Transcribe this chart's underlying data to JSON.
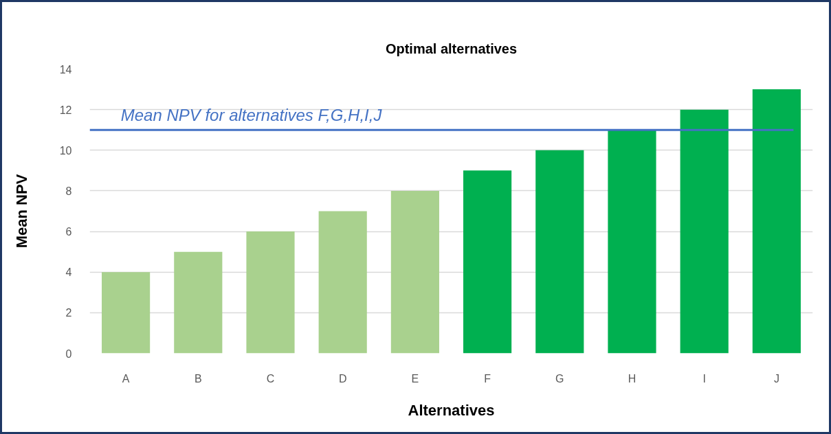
{
  "chart_data": {
    "type": "bar",
    "title": "Optimal alternatives",
    "xlabel": "Alternatives",
    "ylabel": "Mean NPV",
    "categories": [
      "A",
      "B",
      "C",
      "D",
      "E",
      "F",
      "G",
      "H",
      "I",
      "J"
    ],
    "values": [
      4,
      5,
      6,
      7,
      8,
      9,
      10,
      11,
      12,
      13
    ],
    "colors": [
      "#a9d18e",
      "#a9d18e",
      "#a9d18e",
      "#a9d18e",
      "#a9d18e",
      "#00b050",
      "#00b050",
      "#00b050",
      "#00b050",
      "#00b050"
    ],
    "ylim": [
      0,
      14
    ],
    "yticks": [
      0,
      2,
      4,
      6,
      8,
      10,
      12,
      14
    ],
    "grid": "y",
    "ref_lines": [
      {
        "axis": "y",
        "value": 11,
        "label": "Mean NPV for alternatives F,G,H,I,J",
        "color": "#4472c4"
      }
    ]
  }
}
